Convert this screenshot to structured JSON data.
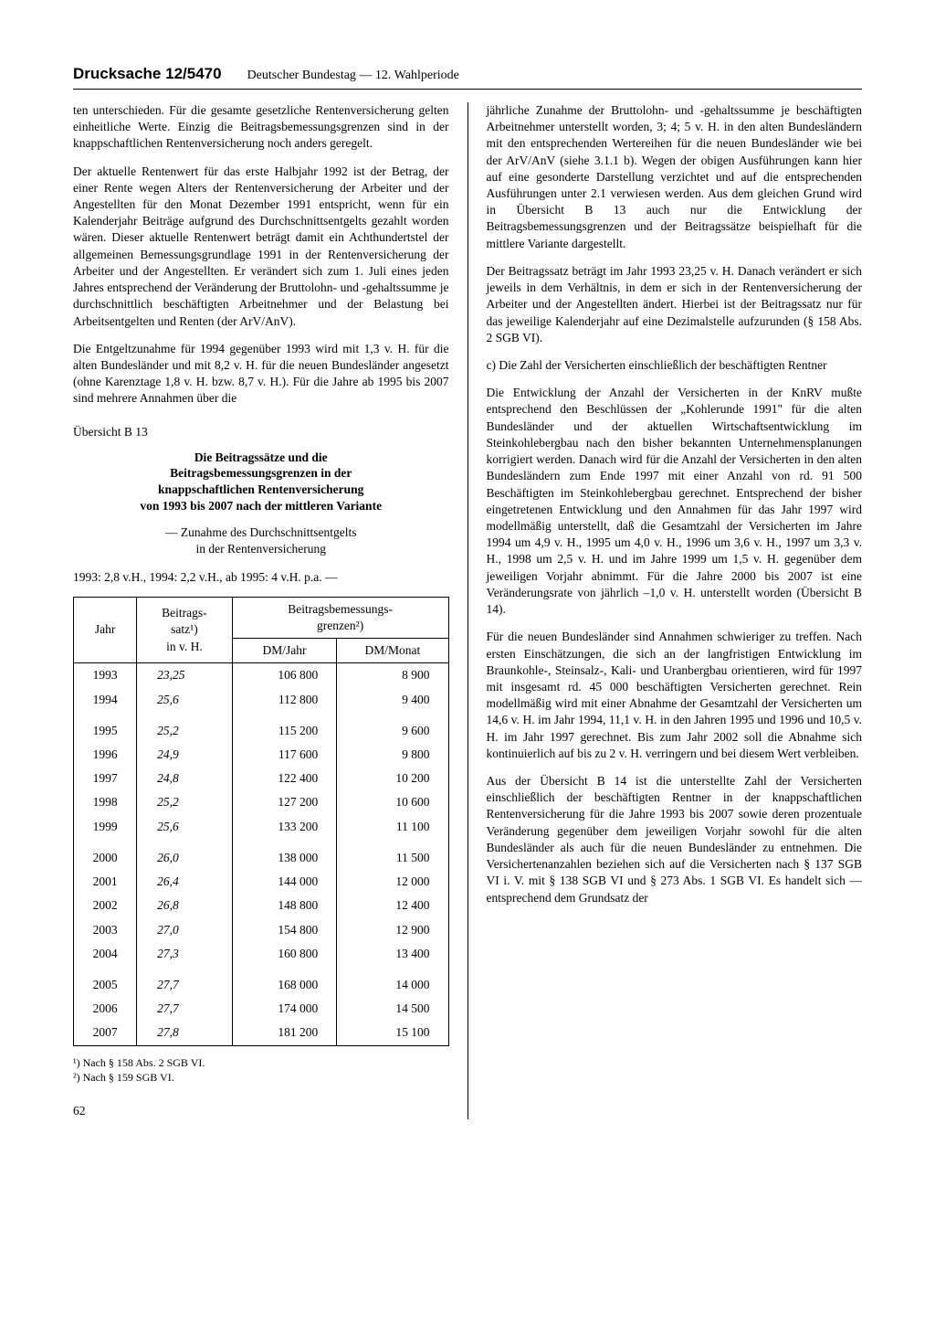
{
  "header": {
    "drucksache": "Drucksache 12/5470",
    "subtitle": "Deutscher Bundestag — 12. Wahlperiode"
  },
  "left": {
    "p1": "ten unterschieden. Für die gesamte gesetzliche Rentenversicherung gelten einheitliche Werte. Einzig die Beitragsbemessungsgrenzen sind in der knappschaftlichen Rentenversicherung noch anders geregelt.",
    "p2": "Der aktuelle Rentenwert für das erste Halbjahr 1992 ist der Betrag, der einer Rente wegen Alters der Rentenversicherung der Arbeiter und der Angestellten für den Monat Dezember 1991 entspricht, wenn für ein Kalenderjahr Beiträge aufgrund des Durchschnittsentgelts gezahlt worden wären. Dieser aktuelle Rentenwert beträgt damit ein Achthundertstel der allgemeinen Bemessungsgrundlage 1991 in der Rentenversicherung der Arbeiter und der Angestellten. Er verändert sich zum 1. Juli eines jeden Jahres entsprechend der Veränderung der Bruttolohn- und -gehaltssumme je durchschnittlich beschäftigten Arbeitnehmer und der Belastung bei Arbeitsentgelten und Renten (der ArV/AnV).",
    "p3": "Die Entgeltzunahme für 1994 gegenüber 1993 wird mit 1,3 v. H. für die alten Bundesländer und mit 8,2 v. H. für die neuen Bundesländer angesetzt (ohne Karenztage 1,8 v. H. bzw. 8,7 v. H.). Für die Jahre ab 1995 bis 2007 sind mehrere Annahmen über die"
  },
  "overview": {
    "label": "Übersicht  B 13",
    "title1": "Die Beitragssätze und die",
    "title2": "Beitragsbemessungsgrenzen in der",
    "title3": "knappschaftlichen Rentenversicherung",
    "title4": "von 1993 bis 2007 nach der mittleren Variante",
    "sub1": "— Zunahme des Durchschnittsentgelts",
    "sub2": "in der Rentenversicherung",
    "sub3": "1993: 2,8 v.H., 1994: 2,2 v.H., ab 1995: 4 v.H. p.a. —",
    "th_jahr": "Jahr",
    "th_satz1": "Beitrags-",
    "th_satz2": "satz¹)",
    "th_satz3": "in v. H.",
    "th_grenzen1": "Beitragsbemessungs-",
    "th_grenzen2": "grenzen²)",
    "th_dmjahr": "DM/Jahr",
    "th_dmmonat": "DM/Monat",
    "rows": [
      {
        "jahr": "1993",
        "satz": "23,25",
        "dmj": "106 800",
        "dmm": "8 900"
      },
      {
        "jahr": "1994",
        "satz": "25,6",
        "dmj": "112 800",
        "dmm": "9 400"
      },
      {
        "jahr": "1995",
        "satz": "25,2",
        "dmj": "115 200",
        "dmm": "9 600"
      },
      {
        "jahr": "1996",
        "satz": "24,9",
        "dmj": "117 600",
        "dmm": "9 800"
      },
      {
        "jahr": "1997",
        "satz": "24,8",
        "dmj": "122 400",
        "dmm": "10 200"
      },
      {
        "jahr": "1998",
        "satz": "25,2",
        "dmj": "127 200",
        "dmm": "10 600"
      },
      {
        "jahr": "1999",
        "satz": "25,6",
        "dmj": "133 200",
        "dmm": "11 100"
      },
      {
        "jahr": "2000",
        "satz": "26,0",
        "dmj": "138 000",
        "dmm": "11 500"
      },
      {
        "jahr": "2001",
        "satz": "26,4",
        "dmj": "144 000",
        "dmm": "12 000"
      },
      {
        "jahr": "2002",
        "satz": "26,8",
        "dmj": "148 800",
        "dmm": "12 400"
      },
      {
        "jahr": "2003",
        "satz": "27,0",
        "dmj": "154 800",
        "dmm": "12 900"
      },
      {
        "jahr": "2004",
        "satz": "27,3",
        "dmj": "160 800",
        "dmm": "13 400"
      },
      {
        "jahr": "2005",
        "satz": "27,7",
        "dmj": "168 000",
        "dmm": "14 000"
      },
      {
        "jahr": "2006",
        "satz": "27,7",
        "dmj": "174 000",
        "dmm": "14 500"
      },
      {
        "jahr": "2007",
        "satz": "27,8",
        "dmj": "181 200",
        "dmm": "15 100"
      }
    ],
    "fn1": "¹) Nach § 158 Abs. 2 SGB VI.",
    "fn2": "²) Nach § 159 SGB VI."
  },
  "right": {
    "p1": "jährliche Zunahme der Bruttolohn- und -gehaltssumme je beschäftigten Arbeitnehmer unterstellt worden, 3; 4; 5 v. H. in den alten Bundesländern mit den entsprechenden Wertereihen für die neuen Bundesländer wie bei der ArV/AnV (siehe 3.1.1 b). Wegen der obigen Ausführungen kann hier auf eine gesonderte Darstellung verzichtet und auf die entsprechenden Ausführungen unter 2.1 verwiesen werden. Aus dem gleichen Grund wird in Übersicht B 13 auch nur die Entwicklung der Beitragsbemessungsgrenzen und der Beitragssätze beispielhaft für die mittlere Variante dargestellt.",
    "p2": "Der Beitragssatz beträgt im Jahr 1993 23,25 v. H. Danach verändert er sich jeweils in dem Verhältnis, in dem er sich in der Rentenversicherung der Arbeiter und der Angestellten ändert. Hierbei ist der Beitragssatz nur für das jeweilige Kalenderjahr auf eine Dezimalstelle aufzurunden (§ 158 Abs. 2 SGB VI).",
    "sec_c": "c) Die Zahl der Versicherten einschließlich der beschäftigten Rentner",
    "p3": "Die Entwicklung der Anzahl der Versicherten in der KnRV mußte entsprechend den Beschlüssen der „Kohlerunde 1991\" für die alten Bundesländer und der aktuellen Wirtschaftsentwicklung im Steinkohlebergbau nach den bisher bekannten Unternehmensplanungen korrigiert werden. Danach wird für die Anzahl der Versicherten in den alten Bundesländern zum Ende 1997 mit einer Anzahl von rd. 91 500 Beschäftigten im Steinkohlebergbau gerechnet. Entsprechend der bisher eingetretenen Entwicklung und den Annahmen für das Jahr 1997 wird modellmäßig unterstellt, daß die Gesamtzahl der Versicherten im Jahre 1994 um 4,9 v. H., 1995 um 4,0 v. H., 1996 um 3,6 v. H., 1997 um 3,3 v. H., 1998 um 2,5 v. H. und im Jahre 1999 um 1,5 v. H. gegenüber dem jeweiligen Vorjahr abnimmt. Für die Jahre 2000 bis 2007 ist eine Veränderungsrate von jährlich –1,0 v. H. unterstellt worden (Übersicht B 14).",
    "p4": "Für die neuen Bundesländer sind Annahmen schwieriger zu treffen. Nach ersten Einschätzungen, die sich an der langfristigen Entwicklung im Braunkohle-, Steinsalz-, Kali- und Uranbergbau orientieren, wird für 1997 mit insgesamt rd. 45 000 beschäftigten Versicherten gerechnet. Rein modellmäßig wird mit einer Abnahme der Gesamtzahl der Versicherten um 14,6 v. H. im Jahr 1994, 11,1 v. H. in den Jahren 1995 und 1996 und 10,5 v. H. im Jahr 1997 gerechnet. Bis zum Jahr 2002 soll die Abnahme sich kontinuierlich auf bis zu 2 v. H. verringern und bei diesem Wert verbleiben.",
    "p5": "Aus der Übersicht B 14 ist die unterstellte Zahl der Versicherten einschließlich der beschäftigten Rentner in der knappschaftlichen Rentenversicherung für die Jahre 1993 bis 2007 sowie deren prozentuale Veränderung gegenüber dem jeweiligen Vorjahr sowohl für die alten Bundesländer als auch für die neuen Bundesländer zu entnehmen. Die Versichertenanzahlen beziehen sich auf die Versicherten nach § 137 SGB VI i. V. mit § 138 SGB VI und § 273 Abs. 1 SGB VI. Es handelt sich — entsprechend dem Grundsatz der"
  },
  "pagenum": "62"
}
